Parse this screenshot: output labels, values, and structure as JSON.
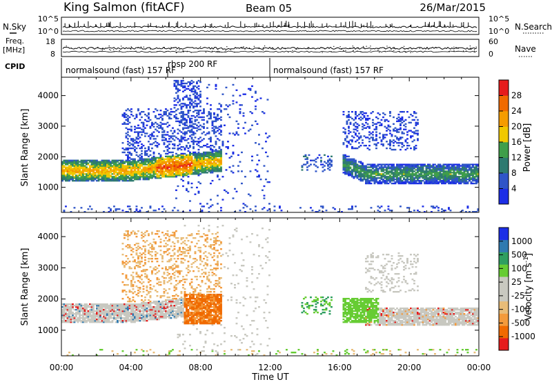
{
  "header": {
    "station": "King Salmon (fitACF)",
    "beam": "Beam 05",
    "date": "26/Mar/2015"
  },
  "noise_panel": {
    "left_label": "N.Sky",
    "right_label": "N.Search",
    "left_ticks": [
      "10^5",
      "10^0"
    ],
    "right_ticks": [
      "10^5",
      "10^0"
    ]
  },
  "freq_panel": {
    "left_label": "Freq.",
    "left_unit": "[MHz]",
    "right_label": "Nave",
    "left_ticks": [
      "18",
      "8"
    ],
    "right_ticks": [
      "60",
      "0"
    ]
  },
  "cpid": {
    "label": "CPID",
    "segments": [
      {
        "text": "normalsound (fast) 157 RF",
        "start_h": 0,
        "end_h": 12
      },
      {
        "text": "rbsp 200 RF",
        "start_h": 6.2,
        "end_h": 6.2
      },
      {
        "text": "normalsound (fast) 157 RF",
        "start_h": 12,
        "end_h": 24
      }
    ]
  },
  "colors": {
    "power": [
      "#1c2ee6",
      "#2f55c8",
      "#2e7a70",
      "#3f9e4a",
      "#f0c800",
      "#f59c00",
      "#f06a00",
      "#e61c1c"
    ],
    "velocity": [
      "#e61c1c",
      "#f06a00",
      "#f39a3c",
      "#e8bc78",
      "#c8c8c0",
      "#c8c8c0",
      "#66cc33",
      "#2e9e60",
      "#2f7ab0",
      "#1c2ee6"
    ]
  },
  "power_colorbar": {
    "label": "Power [dB]",
    "ticks": [
      "28",
      "24",
      "20",
      "16",
      "12",
      "8",
      "4"
    ]
  },
  "velocity_colorbar": {
    "label": "Velocity [m s^-1]",
    "label_main": "Velocity [m s",
    "label_sup": "-1",
    "label_end": "]",
    "ticks": [
      "1000",
      "500",
      "100",
      "25",
      "-25",
      "-100",
      "-500",
      "-1000"
    ]
  },
  "chart_data": [
    {
      "type": "heatmap",
      "title": "King Salmon (fitACF) Beam 05 26/Mar/2015",
      "xlabel": "Time UT",
      "ylabel": "Slant Range [km]",
      "colorbar_label": "Power [dB]",
      "xlim_hours": [
        0,
        24
      ],
      "ylim_km": [
        180,
        4600
      ],
      "x_ticks": [
        "00:00",
        "04:00",
        "08:00",
        "12:00",
        "16:00",
        "20:00",
        "00:00"
      ],
      "y_ticks": [
        1000,
        2000,
        3000,
        4000
      ],
      "color_range_db": [
        0,
        30
      ],
      "regions": [
        {
          "t0": 0.0,
          "t1": 9.2,
          "r0": 1250,
          "r1": 2150,
          "center_km": 1550,
          "peak_db": 22
        },
        {
          "t0": 3.5,
          "t1": 8.5,
          "r0": 2000,
          "r1": 3600,
          "peak_db": 6
        },
        {
          "t0": 6.5,
          "t1": 8.0,
          "r0": 2800,
          "r1": 4500,
          "peak_db": 5
        },
        {
          "t0": 13.8,
          "t1": 15.6,
          "r0": 1500,
          "r1": 2100,
          "peak_db": 8
        },
        {
          "t0": 16.2,
          "t1": 24.0,
          "r0": 1200,
          "r1": 2100,
          "center_km": 1450,
          "peak_db": 14
        },
        {
          "t0": 18.0,
          "t1": 20.0,
          "r0": 2200,
          "r1": 3500,
          "peak_db": 6
        }
      ]
    },
    {
      "type": "heatmap",
      "xlabel": "Time UT",
      "ylabel": "Slant Range [km]",
      "colorbar_label": "Velocity [m s^-1]",
      "xlim_hours": [
        0,
        24
      ],
      "ylim_km": [
        180,
        4600
      ],
      "x_ticks": [
        "00:00",
        "04:00",
        "08:00",
        "12:00",
        "16:00",
        "20:00",
        "00:00"
      ],
      "y_ticks": [
        1000,
        2000,
        3000,
        4000
      ],
      "regions": [
        {
          "t0": 0.0,
          "t1": 7.0,
          "r0": 1300,
          "r1": 1850,
          "velocity": "-25 to 25 (grey)"
        },
        {
          "t0": 7.0,
          "t1": 9.2,
          "r0": 1200,
          "r1": 2150,
          "velocity": "-100 to -500 (orange)"
        },
        {
          "t0": 3.5,
          "t1": 8.5,
          "r0": 2000,
          "r1": 4200,
          "velocity": "-25 to -100 (tan)"
        },
        {
          "t0": 13.8,
          "t1": 15.6,
          "r0": 1500,
          "r1": 2100,
          "velocity": "100 to 500 (green)"
        },
        {
          "t0": 16.3,
          "t1": 18.0,
          "r0": 1300,
          "r1": 2000,
          "velocity": "100 (bright green)"
        },
        {
          "t0": 17.5,
          "t1": 24.0,
          "r0": 1200,
          "r1": 1850,
          "velocity": "-25 to 25 (grey)"
        }
      ]
    }
  ]
}
